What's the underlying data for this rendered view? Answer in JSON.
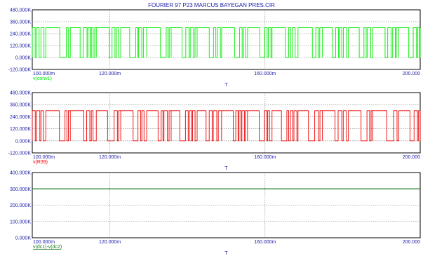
{
  "title": "FOURIER 97 P23 MARCUS BAYEGAN PRES.CIR",
  "colors": {
    "frame": "#000000",
    "grid": "#7a7a7a",
    "axis_text": "#1a1aa6",
    "window_bg": "#ffffff"
  },
  "chart_data": [
    {
      "type": "line",
      "xlabel": "T",
      "x_ticks": [
        "100.000m",
        "120.000m",
        "160.000m",
        "200.000"
      ],
      "x_tick_values": [
        0.1,
        0.12,
        0.16,
        0.2
      ],
      "xlim": [
        0.1,
        0.2
      ],
      "y_ticks": [
        "-120.000K",
        "0.000K",
        "120.000K",
        "240.000K",
        "360.000K",
        "480.000K"
      ],
      "y_tick_values": [
        -120000,
        0,
        120000,
        240000,
        360000,
        480000
      ],
      "ylim": [
        -120000,
        480000
      ],
      "grid": true,
      "series": [
        {
          "name": "v(conv1)",
          "color": "#00ee00",
          "waveform": "pulse train (PWM switching)",
          "high": 300000,
          "low": 0,
          "x": [
            0.1,
            0.2
          ]
        }
      ]
    },
    {
      "type": "line",
      "xlabel": "T",
      "x_ticks": [
        "100.000m",
        "120.000m",
        "160.000m",
        "200.000"
      ],
      "x_tick_values": [
        0.1,
        0.12,
        0.16,
        0.2
      ],
      "xlim": [
        0.1,
        0.2
      ],
      "y_ticks": [
        "-120.000K",
        "0.000K",
        "120.000K",
        "240.000K",
        "360.000K",
        "480.000K"
      ],
      "y_tick_values": [
        -120000,
        0,
        120000,
        240000,
        360000,
        480000
      ],
      "ylim": [
        -120000,
        480000
      ],
      "grid": true,
      "series": [
        {
          "name": "v(R39)",
          "color": "#ee0000",
          "waveform": "pulse train (PWM switching)",
          "high": 300000,
          "low": 0,
          "x": [
            0.1,
            0.2
          ]
        }
      ]
    },
    {
      "type": "line",
      "xlabel": "T",
      "x_ticks": [
        "100.000m",
        "120.000m",
        "160.000m",
        "200.000"
      ],
      "x_tick_values": [
        0.1,
        0.12,
        0.16,
        0.2
      ],
      "xlim": [
        0.1,
        0.2
      ],
      "y_ticks": [
        "0.000K",
        "100.000K",
        "200.000K",
        "300.000K",
        "400.000K"
      ],
      "y_tick_values": [
        0,
        100000,
        200000,
        300000,
        400000
      ],
      "ylim": [
        0,
        400000
      ],
      "grid": true,
      "series": [
        {
          "name": "v(dc1)-v(dc2)",
          "color": "#1a7a1a",
          "waveform": "constant",
          "x": [
            0.1,
            0.2
          ],
          "y": [
            300000,
            300000
          ]
        }
      ]
    }
  ]
}
